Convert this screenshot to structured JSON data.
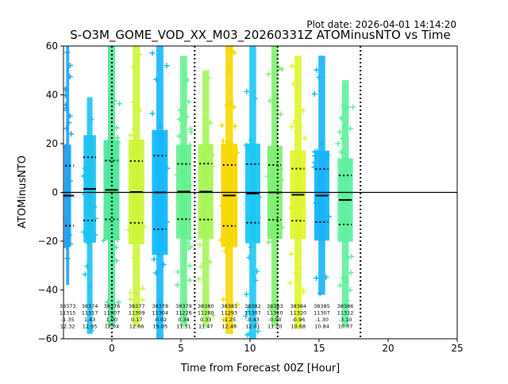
{
  "plot_date": "Plot date: 2026-04-01 14:14:20",
  "chart_data": {
    "type": "scatter",
    "title": "S-O3M_GOME_VOD_XX_M03_20260331Z ATOMinusNTO vs Time",
    "xlabel": "Time from Forecast 00Z [Hour]",
    "ylabel": "ATOMinusNTO",
    "xlim": [
      -3.5,
      25
    ],
    "ylim": [
      -60,
      60
    ],
    "xticks": [
      0,
      5,
      10,
      15,
      20,
      25
    ],
    "yticks": [
      -60,
      -40,
      -20,
      0,
      20,
      40,
      60
    ],
    "zero_line": 0,
    "vlines": [
      0,
      6,
      12,
      18
    ],
    "orbits": [
      {
        "x": -3.2,
        "x0": -3.45,
        "x1": -2.95,
        "hi": 60,
        "lo": -38,
        "mean": -1.35,
        "std": 12.32,
        "color": "#1fa2f5",
        "label": [
          "38373",
          "11315",
          "-1.35",
          "12.32"
        ]
      },
      {
        "x": -1.6,
        "x0": -2.05,
        "x1": -1.15,
        "hi": 39,
        "lo": -58,
        "mean": 1.43,
        "std": 12.95,
        "color": "#1ec2f0",
        "label": [
          "38374",
          "11317",
          "1.43",
          "12.95"
        ]
      },
      {
        "x": 0.0,
        "x0": -0.6,
        "x1": 0.55,
        "hi": 60,
        "lo": -55,
        "mean": 1.0,
        "std": 12.04,
        "color": "#4fe69a",
        "label": [
          "38376",
          "11307",
          "1.00",
          "12.04"
        ]
      },
      {
        "x": 1.8,
        "x0": 1.2,
        "x1": 2.35,
        "hi": 60,
        "lo": -55,
        "mean": 0.17,
        "std": 12.66,
        "color": "#cdf53a",
        "label": [
          "38377",
          "11309",
          "0.17",
          "12.66"
        ]
      },
      {
        "x": 3.5,
        "x0": 2.9,
        "x1": 4.05,
        "hi": 60,
        "lo": -60,
        "mean": -0.02,
        "std": 15.05,
        "color": "#14b8ff",
        "label": [
          "38378",
          "11304",
          "-0.02",
          "15.05"
        ]
      },
      {
        "x": 5.2,
        "x0": 4.65,
        "x1": 5.75,
        "hi": 56,
        "lo": -55,
        "mean": 0.34,
        "std": 11.31,
        "color": "#66f090",
        "label": [
          "38379",
          "11226",
          "0.34",
          "11.31"
        ]
      },
      {
        "x": 6.8,
        "x0": 6.25,
        "x1": 7.35,
        "hi": 50,
        "lo": -55,
        "mean": 0.33,
        "std": 11.47,
        "color": "#a8f55a",
        "label": [
          "38380",
          "11280",
          "0.33",
          "11.47"
        ]
      },
      {
        "x": 8.5,
        "x0": 7.9,
        "x1": 9.1,
        "hi": 60,
        "lo": -58,
        "mean": -1.25,
        "std": 12.48,
        "color": "#f5d800",
        "label": [
          "38381",
          "11293",
          "-1.25",
          "12.48"
        ]
      },
      {
        "x": 10.2,
        "x0": 9.65,
        "x1": 10.75,
        "hi": 60,
        "lo": -60,
        "mean": -0.43,
        "std": 12.01,
        "color": "#1cc8f5",
        "label": [
          "38382",
          "11307",
          "-0.43",
          "12.01"
        ]
      },
      {
        "x": 11.8,
        "x0": 11.25,
        "x1": 12.35,
        "hi": 60,
        "lo": -55,
        "mean": -0.0,
        "std": 11.2,
        "color": "#80f070",
        "label": [
          "38383",
          "11310",
          "-0.00",
          "11.20"
        ]
      },
      {
        "x": 13.5,
        "x0": 12.9,
        "x1": 14.05,
        "hi": 56,
        "lo": -56,
        "mean": -0.96,
        "std": 10.68,
        "color": "#e0f530",
        "label": [
          "38384",
          "11320",
          "-0.96",
          "10.68"
        ]
      },
      {
        "x": 15.2,
        "x0": 14.65,
        "x1": 15.75,
        "hi": 56,
        "lo": -42,
        "mean": -1.3,
        "std": 10.84,
        "color": "#18b4f8",
        "label": [
          "38385",
          "11307",
          "-1.30",
          "10.84"
        ]
      },
      {
        "x": 16.9,
        "x0": 16.35,
        "x1": 17.45,
        "hi": 46,
        "lo": -55,
        "mean": -3.1,
        "std": 10.07,
        "color": "#5ef0a0",
        "label": [
          "38386",
          "11312",
          "-3.10",
          "10.07"
        ]
      }
    ]
  }
}
